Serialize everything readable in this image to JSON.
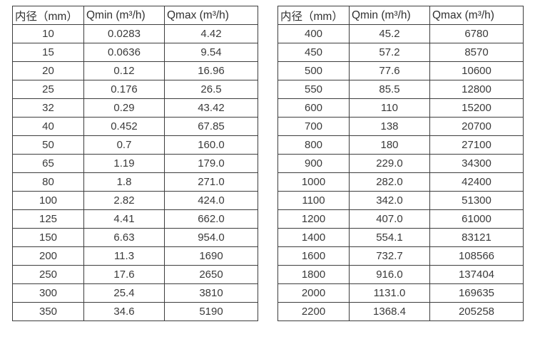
{
  "tables": [
    {
      "name": "flow-spec-table-small-diameters",
      "headers": [
        "内径（mm）",
        "Qmin (m³/h)",
        "Qmax (m³/h)"
      ],
      "rows": [
        [
          "10",
          "0.0283",
          "4.42"
        ],
        [
          "15",
          "0.0636",
          "9.54"
        ],
        [
          "20",
          "0.12",
          "16.96"
        ],
        [
          "25",
          "0.176",
          "26.5"
        ],
        [
          "32",
          "0.29",
          "43.42"
        ],
        [
          "40",
          "0.452",
          "67.85"
        ],
        [
          "50",
          "0.7",
          "160.0"
        ],
        [
          "65",
          "1.19",
          "179.0"
        ],
        [
          "80",
          "1.8",
          "271.0"
        ],
        [
          "100",
          "2.82",
          "424.0"
        ],
        [
          "125",
          "4.41",
          "662.0"
        ],
        [
          "150",
          "6.63",
          "954.0"
        ],
        [
          "200",
          "11.3",
          "1690"
        ],
        [
          "250",
          "17.6",
          "2650"
        ],
        [
          "300",
          "25.4",
          "3810"
        ],
        [
          "350",
          "34.6",
          "5190"
        ]
      ]
    },
    {
      "name": "flow-spec-table-large-diameters",
      "headers": [
        "内径（mm）",
        "Qmin (m³/h)",
        "Qmax (m³/h)"
      ],
      "rows": [
        [
          "400",
          "45.2",
          "6780"
        ],
        [
          "450",
          "57.2",
          "8570"
        ],
        [
          "500",
          "77.6",
          "10600"
        ],
        [
          "550",
          "85.5",
          "12800"
        ],
        [
          "600",
          "110",
          "15200"
        ],
        [
          "700",
          "138",
          "20700"
        ],
        [
          "800",
          "180",
          "27100"
        ],
        [
          "900",
          "229.0",
          "34300"
        ],
        [
          "1000",
          "282.0",
          "42400"
        ],
        [
          "1100",
          "342.0",
          "51300"
        ],
        [
          "1200",
          "407.0",
          "61000"
        ],
        [
          "1400",
          "554.1",
          "83121"
        ],
        [
          "1600",
          "732.7",
          "108566"
        ],
        [
          "1800",
          "916.0",
          "137404"
        ],
        [
          "2000",
          "1131.0",
          "169635"
        ],
        [
          "2200",
          "1368.4",
          "205258"
        ]
      ]
    }
  ],
  "border_color": "#3d3d3d",
  "text_color": "#333333"
}
